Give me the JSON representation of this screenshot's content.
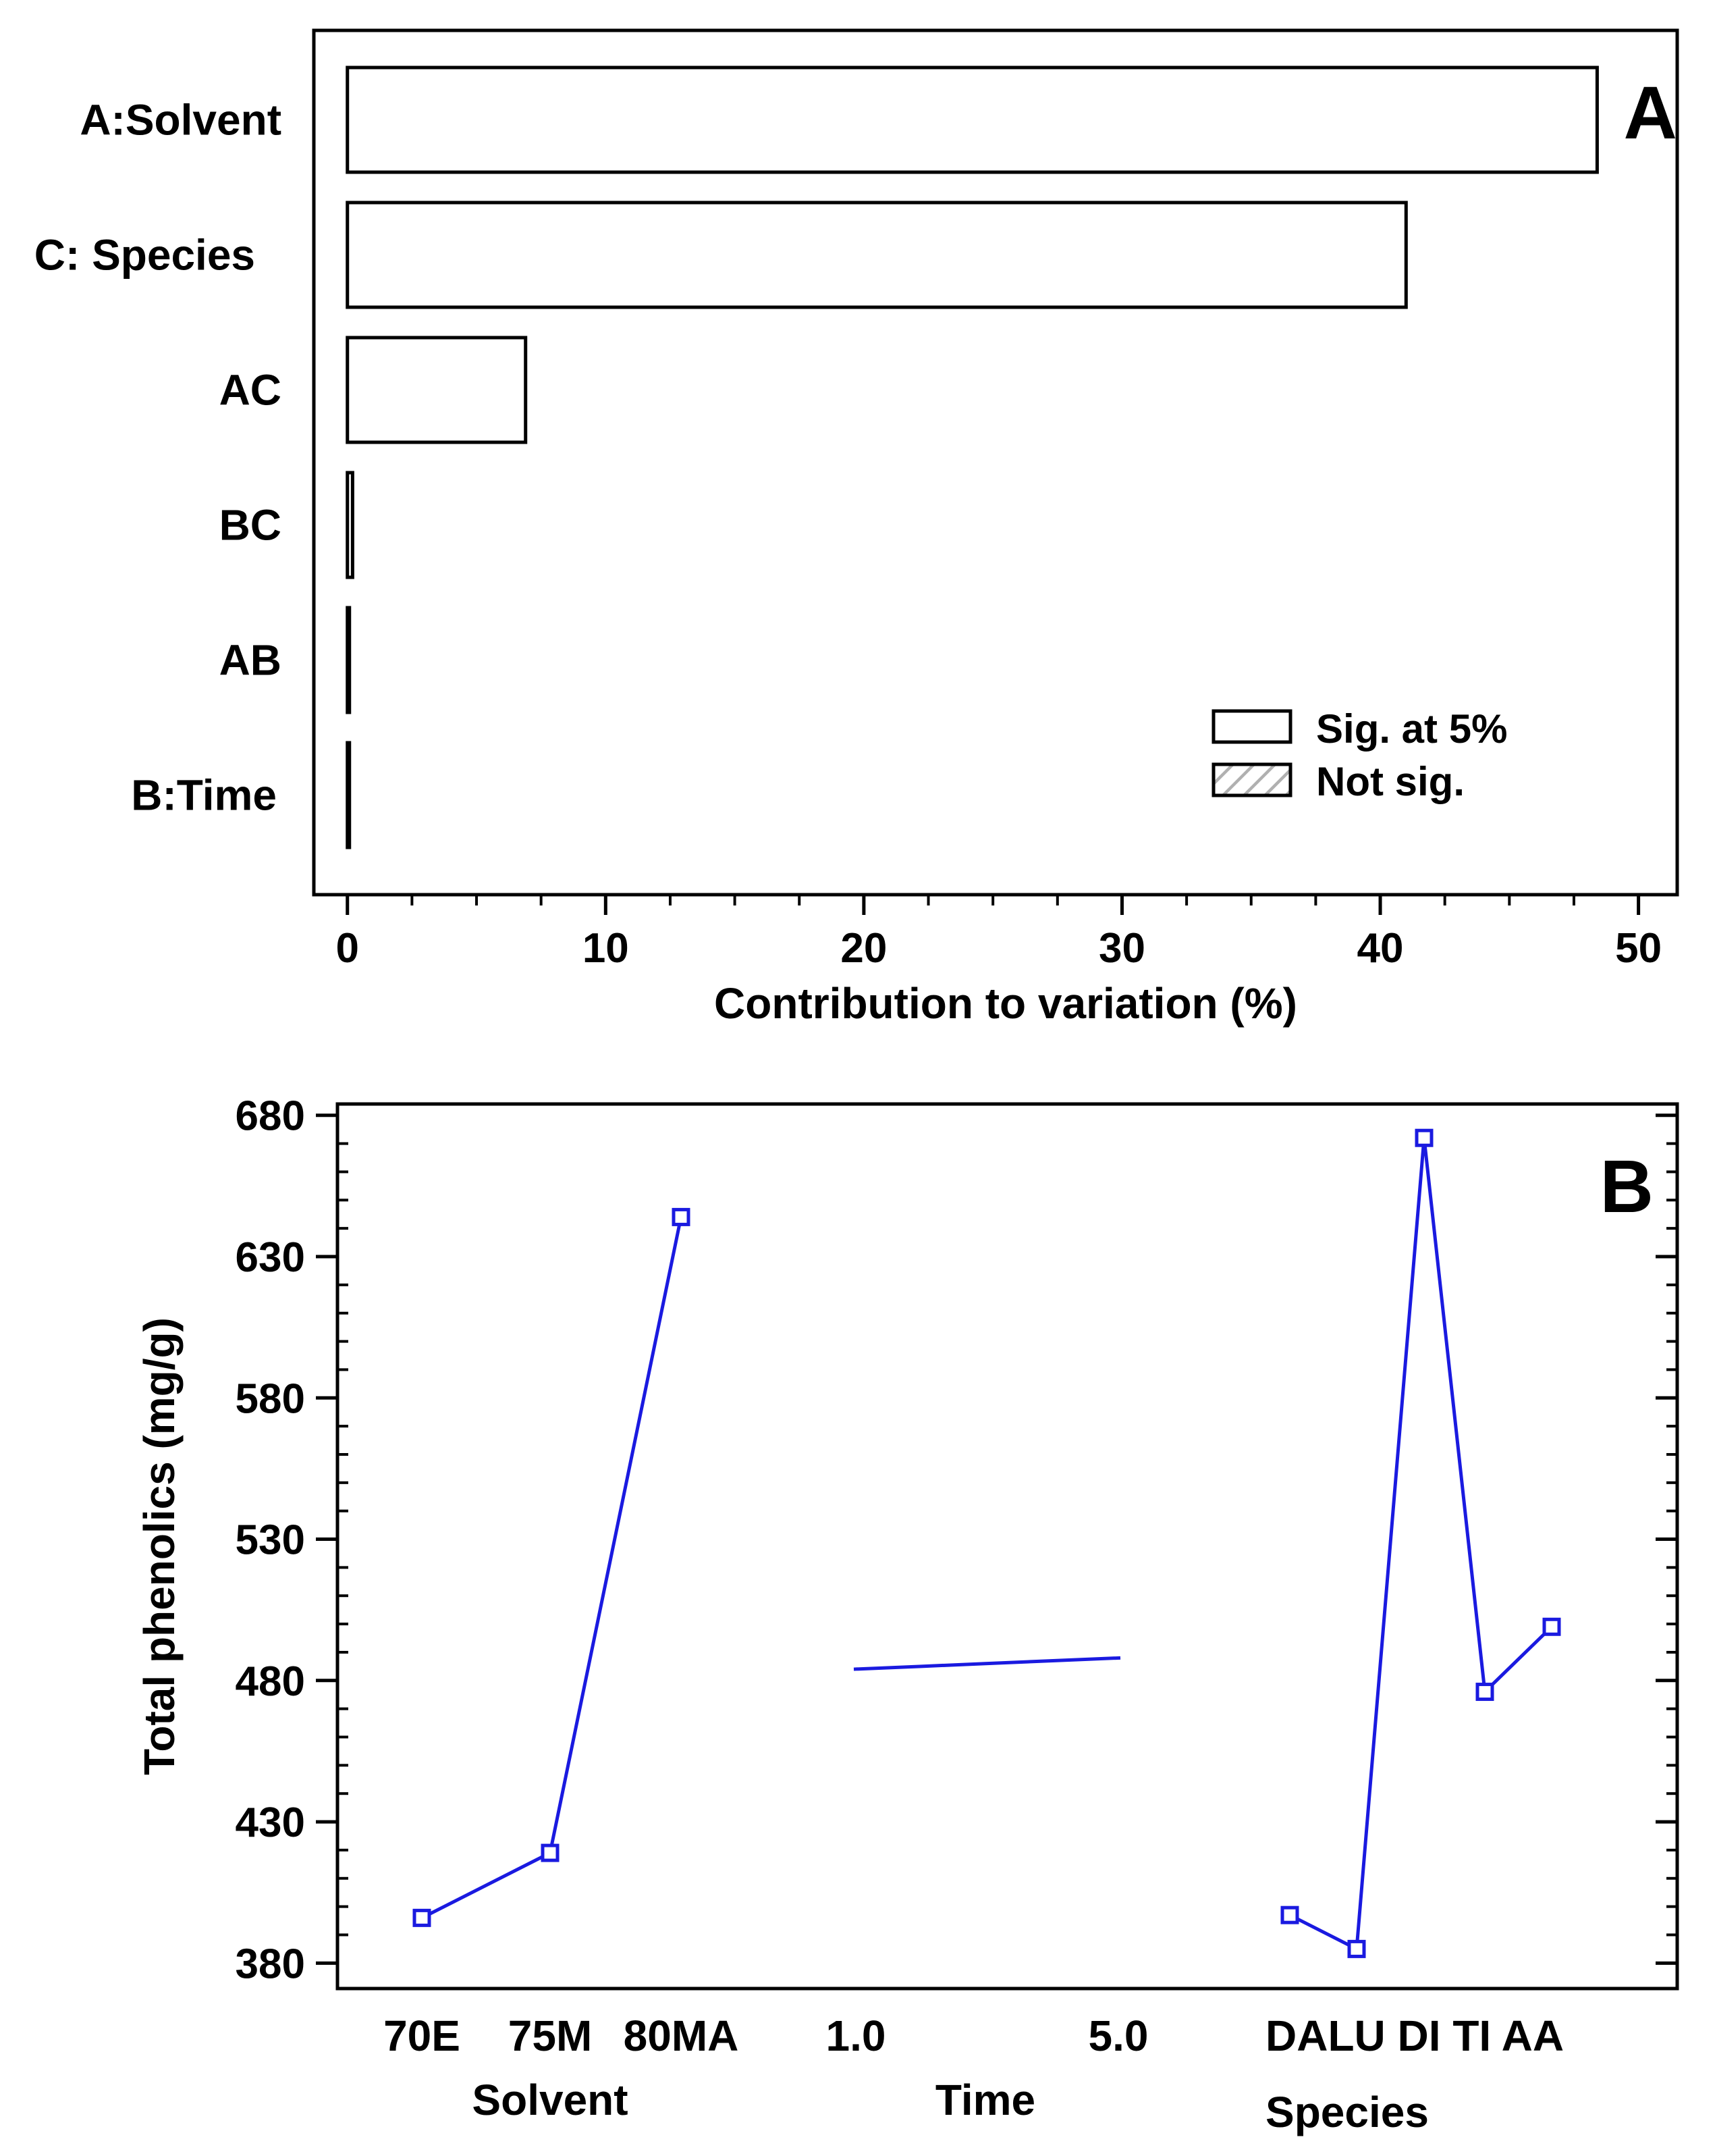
{
  "colors": {
    "axis": "#000000",
    "bar_fill": "#ffffff",
    "bar_stroke": "#000000",
    "series_line": "#1a1ae0",
    "hatch": "#b0b0b0"
  },
  "chart_data": [
    {
      "type": "bar",
      "orientation": "horizontal",
      "panel_label": "A",
      "title": "",
      "categories": [
        "A:Solvent",
        "C: Species",
        "AC",
        "BC",
        "AB",
        "B:Time"
      ],
      "values": [
        48.4,
        41.0,
        6.9,
        0.2,
        0.05,
        0.05
      ],
      "xlabel": "Contribution to variation (%)",
      "xlim": [
        -1.3,
        51.5
      ],
      "xticks": [
        0,
        10,
        20,
        30,
        40,
        50
      ],
      "xtick_labels": [
        "0",
        "10",
        "20",
        "30",
        "40",
        "50"
      ],
      "legend": {
        "position": "bottom-right",
        "entries": [
          "Sig. at 5%",
          "Not sig."
        ]
      }
    },
    {
      "type": "line",
      "panel_label": "B",
      "title": "",
      "ylabel": "Total phenolics (mg/g)",
      "ylim": [
        371,
        684
      ],
      "yticks": [
        380,
        430,
        480,
        530,
        580,
        630,
        680
      ],
      "ytick_labels": [
        "380",
        "430",
        "480",
        "530",
        "580",
        "630",
        "680"
      ],
      "series": [
        {
          "name": "Solvent",
          "axis_title": "Solvent",
          "categories": [
            "70E",
            "75M",
            "80MA"
          ],
          "values": [
            396,
            419,
            644
          ],
          "markers": true
        },
        {
          "name": "Time",
          "axis_title": "Time",
          "x": [
            1.0,
            2.0,
            3.0,
            4.0,
            5.0
          ],
          "values": [
            484,
            485,
            486,
            487,
            488
          ],
          "range_labels": [
            "1.0",
            "5.0"
          ],
          "markers": false
        },
        {
          "name": "Species",
          "axis_title": "Species",
          "categories": [
            "DA",
            "LU",
            "DI",
            "TI",
            "AA"
          ],
          "values": [
            397,
            385,
            672,
            476,
            499
          ],
          "tick_text": "DALU DI TI AA",
          "markers": true
        }
      ]
    }
  ]
}
